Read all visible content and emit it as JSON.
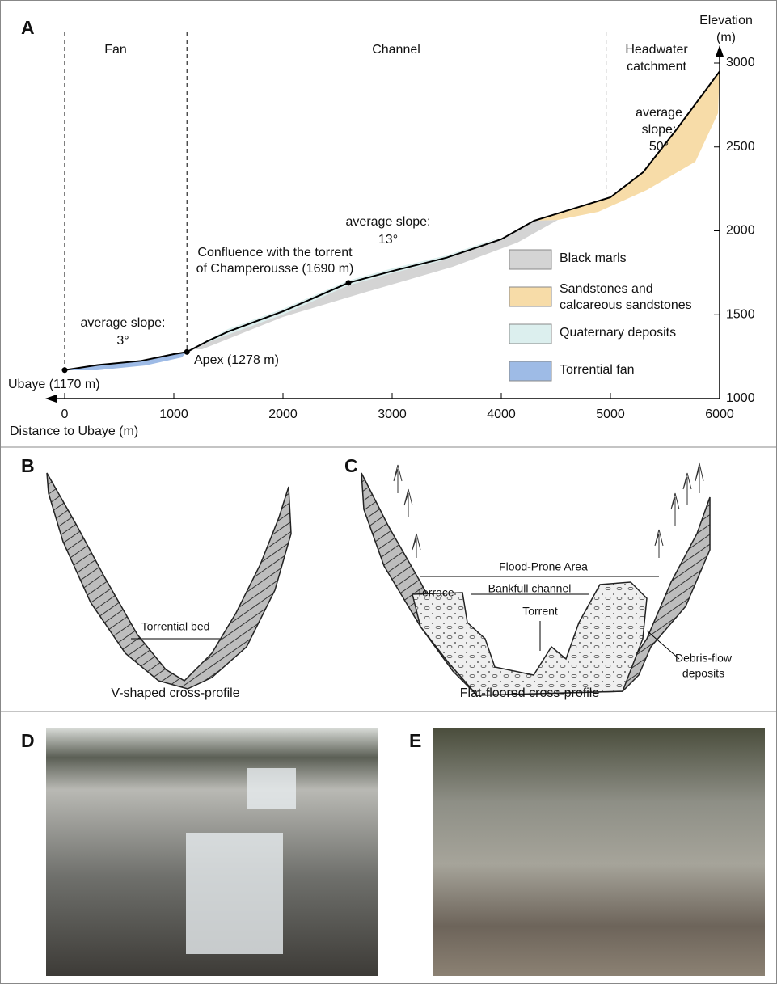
{
  "chart_data": {
    "type": "line",
    "panel_label": "A",
    "zones": [
      [
        "Fan"
      ],
      [
        "Channel"
      ],
      [
        "Headwater",
        "catchment"
      ]
    ],
    "boundaries": [
      0,
      1120,
      4960
    ],
    "x_label": "Distance to Ubaye (m)",
    "y_label": [
      "Elevation",
      "(m)"
    ],
    "xlim": [
      0,
      6000
    ],
    "xticks": [
      0,
      1000,
      2000,
      3000,
      4000,
      5000,
      6000
    ],
    "ylim": [
      1000,
      3000
    ],
    "yticks": [
      1000,
      1500,
      2000,
      2500,
      3000
    ],
    "x": [
      0,
      300,
      700,
      1000,
      1120,
      1300,
      1500,
      2000,
      2600,
      3000,
      3500,
      4000,
      4300,
      4700,
      5000,
      5300,
      5600,
      6000
    ],
    "y": [
      1170,
      1200,
      1225,
      1265,
      1278,
      1340,
      1400,
      1520,
      1690,
      1760,
      1840,
      1950,
      2060,
      2140,
      2200,
      2350,
      2600,
      2950
    ],
    "color": "#000000",
    "points": [
      {
        "label": "Ubaye (1170 m)",
        "x": 0,
        "y": 1170
      },
      {
        "label": "Apex (1278 m)",
        "x": 1120,
        "y": 1278
      },
      {
        "label": [
          "Confluence with the torrent",
          "of Champerousse (1690 m)"
        ],
        "x": 2600,
        "y": 1690
      }
    ],
    "annotations": [
      [
        "average slope:",
        "3°"
      ],
      [
        "average slope:",
        "13°"
      ],
      [
        "average",
        "slope:",
        "50°"
      ]
    ],
    "legend": [
      {
        "name": "Black marls",
        "color": "#d4d4d4"
      },
      {
        "name": [
          "Sandstones and",
          "calcareous sandstones"
        ],
        "color": "#f7dca8"
      },
      {
        "name": "Quaternary deposits",
        "color": "#dcefee"
      },
      {
        "name": "Torrential fan",
        "color": "#9ebbe6"
      }
    ]
  },
  "panel_b": {
    "label": "B",
    "bed": "Torrential bed",
    "caption": "V-shaped cross-profile"
  },
  "panel_c": {
    "label": "C",
    "flood": "Flood-Prone Area",
    "bankfull": "Bankfull channel",
    "terrace": "Terrace",
    "torrent": "Torrent",
    "deposits": [
      "Debris-flow",
      "deposits"
    ],
    "caption": "Flat-floored cross-profile"
  },
  "panel_d": {
    "label": "D"
  },
  "panel_e": {
    "label": "E"
  }
}
